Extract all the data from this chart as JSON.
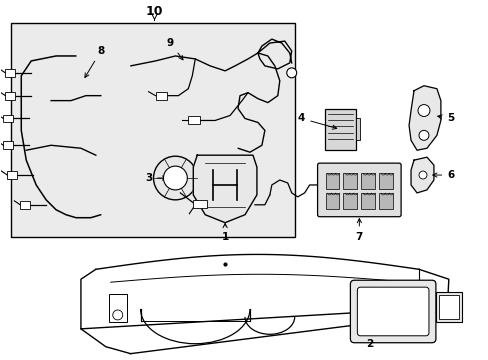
{
  "bg_color": "#ffffff",
  "line_color": "#000000",
  "box_bg": "#ebebeb",
  "figsize": [
    4.89,
    3.6
  ],
  "dpi": 100
}
